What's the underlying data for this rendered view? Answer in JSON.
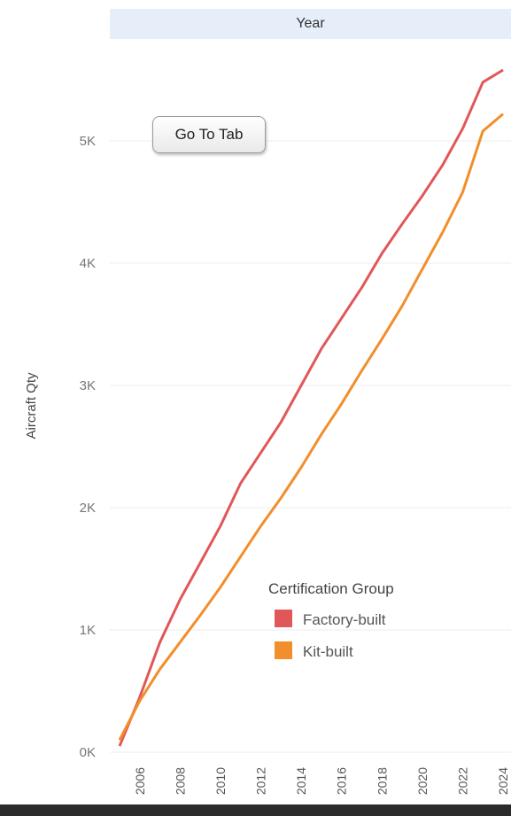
{
  "header": {
    "title": "Year"
  },
  "button": {
    "label": "Go To Tab"
  },
  "chart_data": {
    "type": "line",
    "xlabel": "Year",
    "ylabel": "Aircraft Qty",
    "x": [
      2005,
      2006,
      2007,
      2008,
      2009,
      2010,
      2011,
      2012,
      2013,
      2014,
      2015,
      2016,
      2017,
      2018,
      2019,
      2020,
      2021,
      2022,
      2023,
      2024
    ],
    "x_ticks": [
      "2006",
      "2008",
      "2010",
      "2012",
      "2014",
      "2016",
      "2018",
      "2020",
      "2022",
      "2024"
    ],
    "y_ticks": [
      "0K",
      "1K",
      "2K",
      "3K",
      "4K",
      "5K"
    ],
    "ylim": [
      0,
      5700
    ],
    "grid": true,
    "legend": {
      "title": "Certification Group",
      "position": "bottom-right"
    },
    "series": [
      {
        "name": "Factory-built",
        "color": "#e15759",
        "values": [
          50,
          450,
          900,
          1250,
          1550,
          1850,
          2200,
          2450,
          2700,
          3000,
          3300,
          3550,
          3800,
          4080,
          4320,
          4550,
          4800,
          5100,
          5480,
          5580
        ]
      },
      {
        "name": "Kit-built",
        "color": "#f28e2b",
        "values": [
          100,
          420,
          680,
          900,
          1120,
          1350,
          1600,
          1850,
          2080,
          2330,
          2600,
          2850,
          3120,
          3380,
          3650,
          3950,
          4250,
          4580,
          5080,
          5220
        ]
      }
    ]
  }
}
